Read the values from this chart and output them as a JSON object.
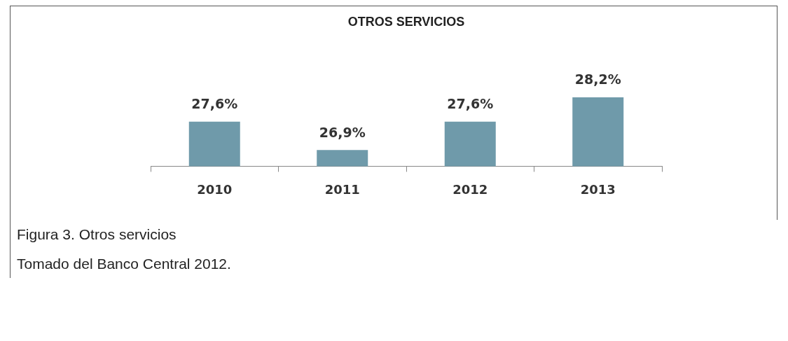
{
  "chart_data": {
    "type": "bar",
    "title": "OTROS SERVICIOS",
    "categories": [
      "2010",
      "2011",
      "2012",
      "2013"
    ],
    "values": [
      27.6,
      26.9,
      27.6,
      28.2
    ],
    "value_labels": [
      "27,6%",
      "26,9%",
      "27,6%",
      "28,2%"
    ],
    "color": "#6f9aaa",
    "tick_labels": "x",
    "grid": false,
    "annotations": [
      "Figura 3. Otros servicios",
      "Tomado del Banco Central 2012."
    ]
  }
}
